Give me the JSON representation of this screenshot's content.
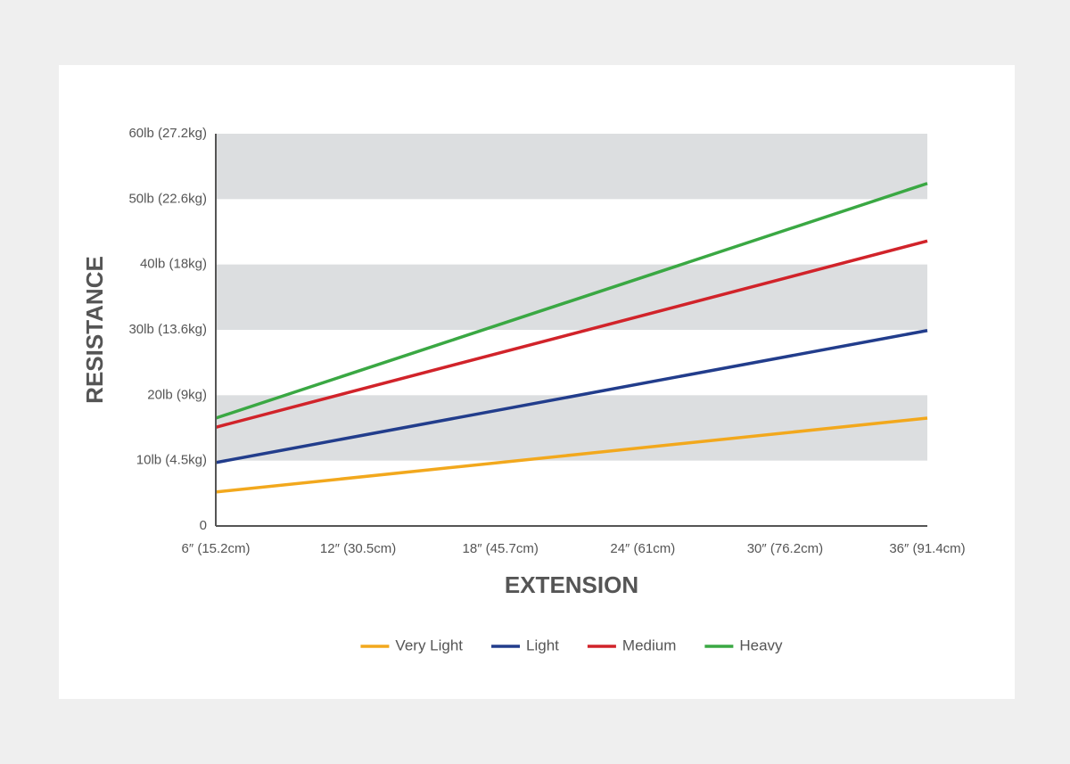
{
  "chart_data": {
    "type": "line",
    "x": [
      6,
      36
    ],
    "xlim": [
      6,
      36
    ],
    "xticks": [
      {
        "value": 6,
        "label": "6″ (15.2cm)"
      },
      {
        "value": 12,
        "label": "12″ (30.5cm)"
      },
      {
        "value": 18,
        "label": "18″ (45.7cm)"
      },
      {
        "value": 24,
        "label": "24″ (61cm)"
      },
      {
        "value": 30,
        "label": "30″ (76.2cm)"
      },
      {
        "value": 36,
        "label": "36″ (91.4cm)"
      }
    ],
    "ylim": [
      0,
      60
    ],
    "yticks": [
      0,
      {
        "value": 10,
        "label": "10lb (4.5kg)"
      },
      {
        "value": 20,
        "label": "20lb (9kg)"
      },
      {
        "value": 30,
        "label": "30lb (13.6kg)"
      },
      {
        "value": 40,
        "label": "40lb (18kg)"
      },
      {
        "value": 50,
        "label": "50lb (22.6kg)"
      },
      {
        "value": 60,
        "label": "60lb (27.2kg)"
      }
    ],
    "xlabel": "EXTENSION",
    "ylabel": "RESISTANCE",
    "grid": "bands",
    "legend": "bottom",
    "series": [
      {
        "name": "Very Light",
        "color": "#f2a81d",
        "values": [
          5.2,
          16.5
        ]
      },
      {
        "name": "Light",
        "color": "#223d8c",
        "values": [
          9.7,
          29.9
        ]
      },
      {
        "name": "Medium",
        "color": "#d1232a",
        "values": [
          15.1,
          43.6
        ]
      },
      {
        "name": "Heavy",
        "color": "#3aa843",
        "values": [
          16.5,
          52.4
        ]
      }
    ]
  }
}
